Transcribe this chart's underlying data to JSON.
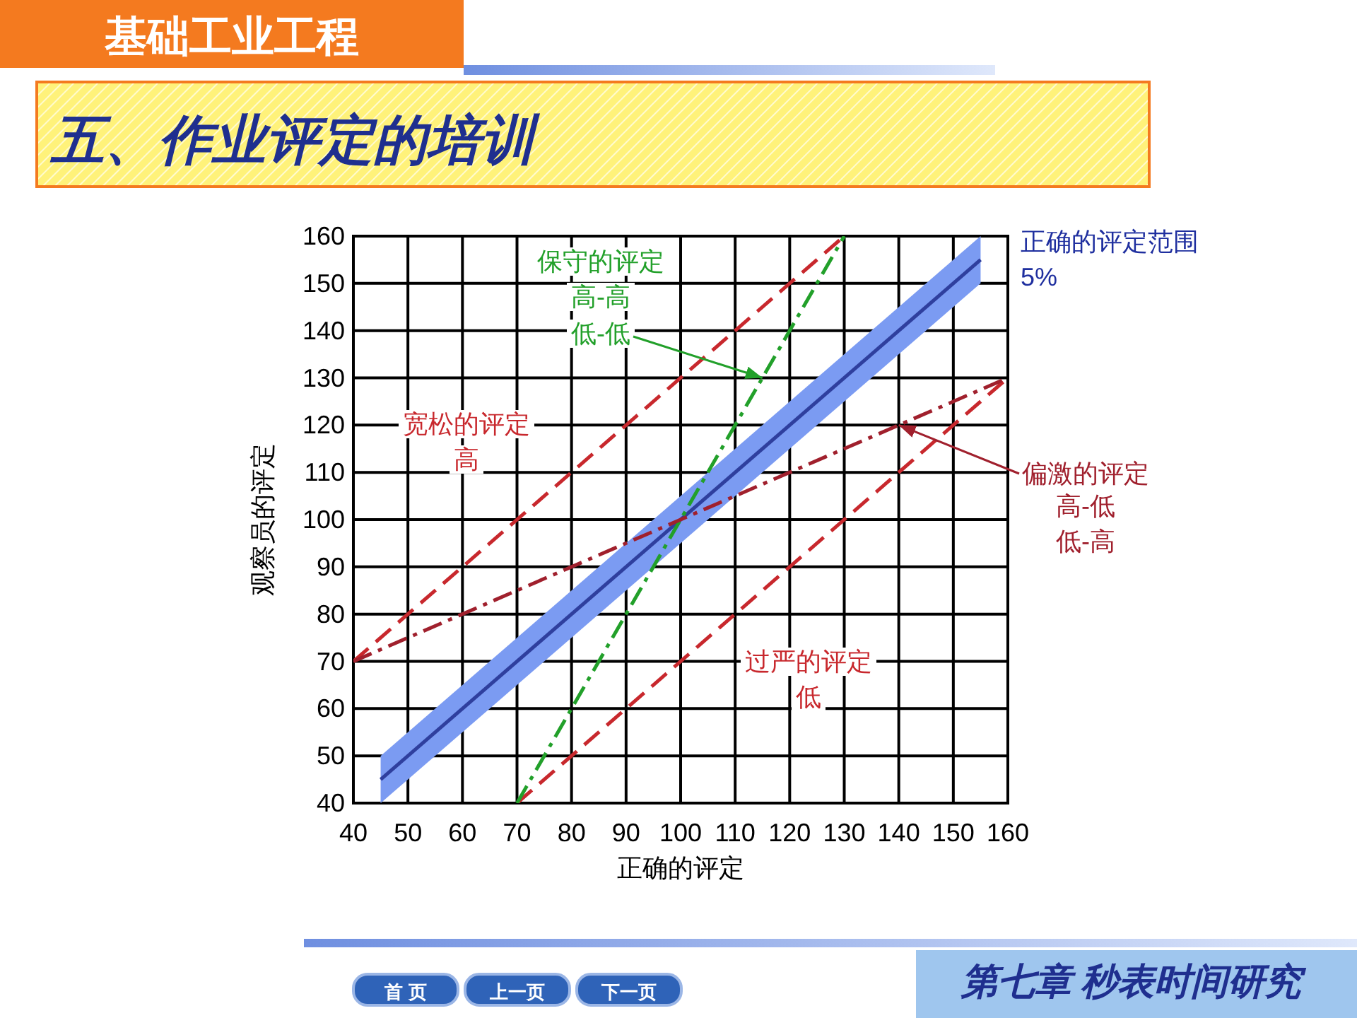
{
  "chart_data": {
    "type": "line",
    "title": "五、作业评定的培训",
    "subtitle": "基础工业工程",
    "xlabel": "正确的评定",
    "ylabel": "观察员的评定",
    "xlim": [
      40,
      160
    ],
    "ylim": [
      40,
      160
    ],
    "xticks": [
      40,
      50,
      60,
      70,
      80,
      90,
      100,
      110,
      120,
      130,
      140,
      150,
      160
    ],
    "yticks": [
      40,
      50,
      60,
      70,
      80,
      90,
      100,
      110,
      120,
      130,
      140,
      150,
      160
    ],
    "grid": true,
    "series": [
      {
        "color": "#2f3f9e",
        "line_style": "solid",
        "x": [
          45,
          155
        ],
        "values": [
          45,
          155
        ],
        "lower": [
          40,
          150
        ],
        "upper": [
          50,
          160
        ]
      },
      {
        "color": "#c8282d",
        "line_style": "dashed",
        "x": [
          40,
          130
        ],
        "values": [
          70,
          160
        ]
      },
      {
        "color": "#c8282d",
        "line_style": "dashed",
        "x": [
          70,
          160
        ],
        "values": [
          40,
          130
        ]
      },
      {
        "color": "#22a02a",
        "line_style": "dashdot",
        "x": [
          70,
          130
        ],
        "values": [
          40,
          160
        ]
      },
      {
        "color": "#a0202d",
        "line_style": "dashdot",
        "x": [
          40,
          160
        ],
        "values": [
          70,
          130
        ]
      }
    ],
    "annotations": [
      "保守的评定",
      "高-高",
      {
        "text": "低-低",
        "x": 115,
        "y": 130
      },
      "宽松的评定",
      "高",
      {
        "text": "偏激的评定",
        "x": 140,
        "y": 120
      },
      "高-低",
      "低-高",
      "过严的评定",
      "低",
      "正确的评定范围",
      "5%",
      "第七章 秒表时间研究",
      "首 页",
      "上一页",
      "下一页"
    ]
  }
}
